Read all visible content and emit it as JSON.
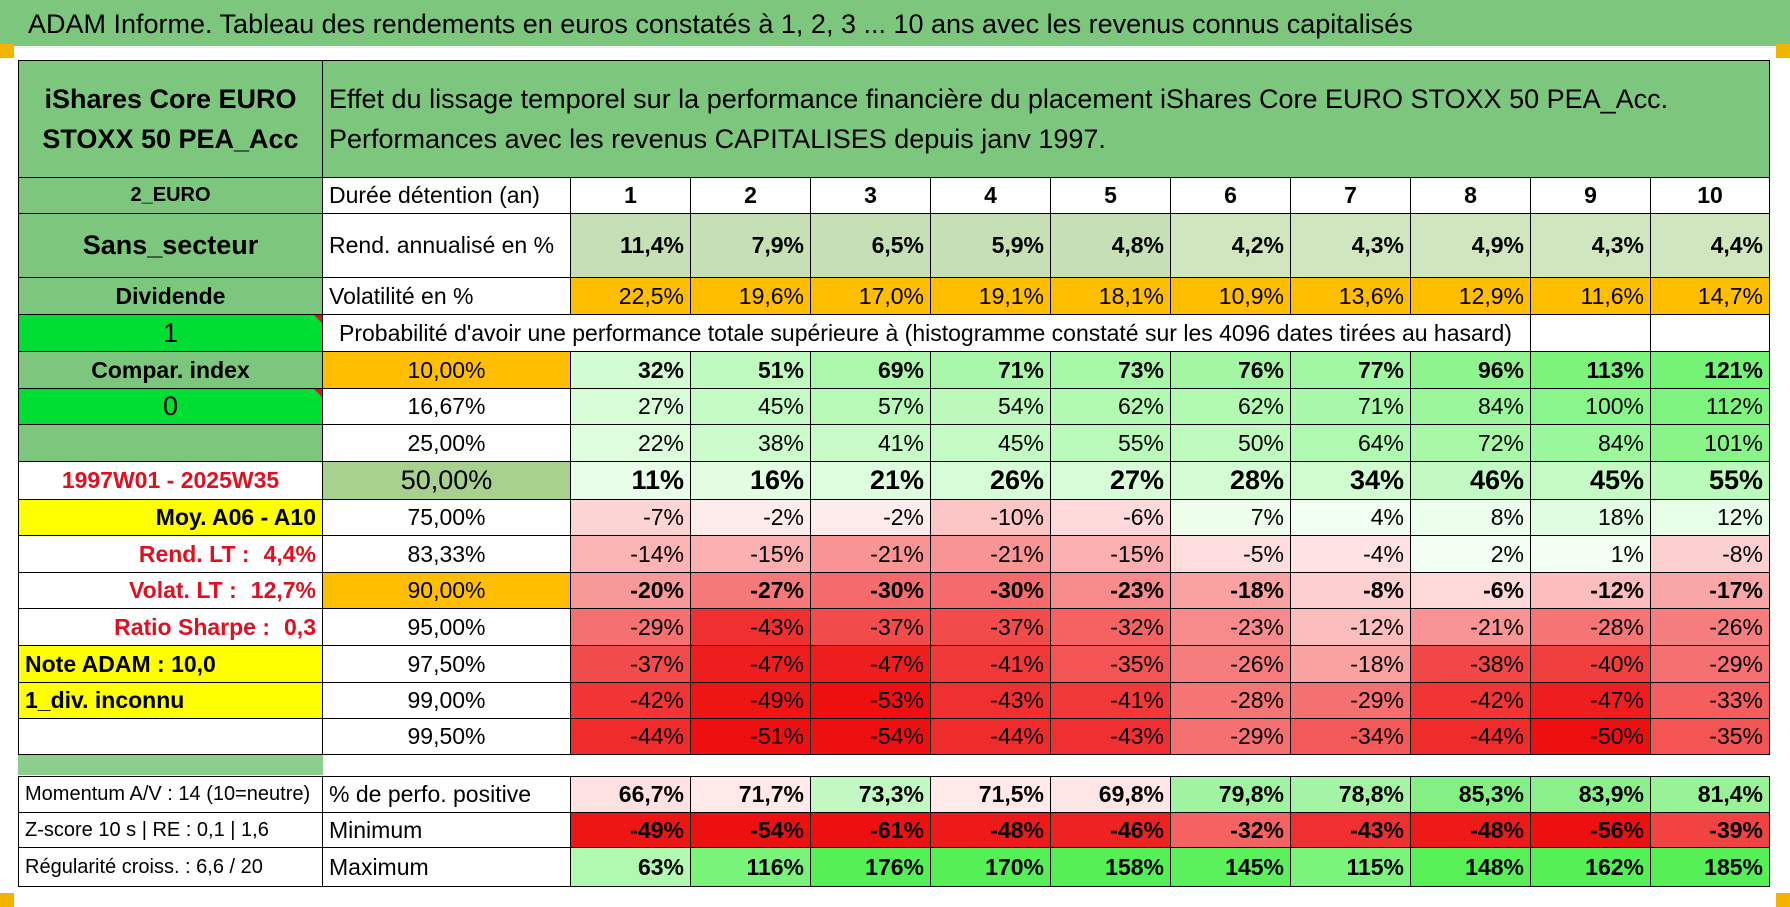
{
  "title": "ADAM Informe. Tableau des rendements en euros constatés à 1, 2, 3 ... 10 ans avec les revenus connus capitalisés",
  "fund_name": "iShares Core EURO STOXX 50 PEA_Acc",
  "description": "Effet du lissage temporel sur la performance financière du placement iShares Core EURO STOXX 50 PEA_Acc. Performances avec les revenus CAPITALISES depuis janv 1997.",
  "left_labels": {
    "currency": "2_EURO",
    "sector": "Sans_secteur",
    "dividend": "Dividende",
    "flag1": "1",
    "compar_index": "Compar. index",
    "flag0": "0",
    "period": "1997W01 - 2025W35",
    "moy": "Moy. A06 - A10",
    "rend_lt_label": "Rend. LT :",
    "rend_lt_value": "4,4%",
    "volat_lt_label": "Volat. LT :",
    "volat_lt_value": "12,7%",
    "sharpe_label": "Ratio Sharpe :",
    "sharpe_value": "0,3",
    "note": "Note ADAM : 10,0",
    "div_inconnu": "1_div. inconnu",
    "momentum": "Momentum A/V : 14 (10=neutre)",
    "zscore": "Z-score 10 s | RE : 0,1 | 1,6",
    "regularite": "Régularité croiss. : 6,6 / 20"
  },
  "row_labels": {
    "duree": "Durée détention (an)",
    "rend": "Rend. annualisé en %",
    "volat": "Volatilité en %",
    "probability": "Probabilité d'avoir une performance totale supérieure à (histogramme constaté sur les 4096 dates tirées au hasard)",
    "pos": "% de perfo. positive",
    "min": "Minimum",
    "max": "Maximum"
  },
  "years": [
    "1",
    "2",
    "3",
    "4",
    "5",
    "6",
    "7",
    "8",
    "9",
    "10"
  ],
  "rend": [
    "11,4%",
    "7,9%",
    "6,5%",
    "5,9%",
    "4,8%",
    "4,2%",
    "4,3%",
    "4,9%",
    "4,3%",
    "4,4%"
  ],
  "volat": [
    "22,5%",
    "19,6%",
    "17,0%",
    "19,1%",
    "18,1%",
    "10,9%",
    "13,6%",
    "12,9%",
    "11,6%",
    "14,7%"
  ],
  "percentile_rows": [
    {
      "level": "10,00%",
      "values": [
        "32%",
        "51%",
        "69%",
        "71%",
        "73%",
        "76%",
        "77%",
        "96%",
        "113%",
        "121%"
      ]
    },
    {
      "level": "16,67%",
      "values": [
        "27%",
        "45%",
        "57%",
        "54%",
        "62%",
        "62%",
        "71%",
        "84%",
        "100%",
        "112%"
      ]
    },
    {
      "level": "25,00%",
      "values": [
        "22%",
        "38%",
        "41%",
        "45%",
        "55%",
        "50%",
        "64%",
        "72%",
        "84%",
        "101%"
      ]
    },
    {
      "level": "50,00%",
      "values": [
        "11%",
        "16%",
        "21%",
        "26%",
        "27%",
        "28%",
        "34%",
        "46%",
        "45%",
        "55%"
      ]
    },
    {
      "level": "75,00%",
      "values": [
        "-7%",
        "-2%",
        "-2%",
        "-10%",
        "-6%",
        "7%",
        "4%",
        "8%",
        "18%",
        "12%"
      ]
    },
    {
      "level": "83,33%",
      "values": [
        "-14%",
        "-15%",
        "-21%",
        "-21%",
        "-15%",
        "-5%",
        "-4%",
        "2%",
        "1%",
        "-8%"
      ]
    },
    {
      "level": "90,00%",
      "values": [
        "-20%",
        "-27%",
        "-30%",
        "-30%",
        "-23%",
        "-18%",
        "-8%",
        "-6%",
        "-12%",
        "-17%"
      ]
    },
    {
      "level": "95,00%",
      "values": [
        "-29%",
        "-43%",
        "-37%",
        "-37%",
        "-32%",
        "-23%",
        "-12%",
        "-21%",
        "-28%",
        "-26%"
      ]
    },
    {
      "level": "97,50%",
      "values": [
        "-37%",
        "-47%",
        "-47%",
        "-41%",
        "-35%",
        "-26%",
        "-18%",
        "-38%",
        "-40%",
        "-29%"
      ]
    },
    {
      "level": "99,00%",
      "values": [
        "-42%",
        "-49%",
        "-53%",
        "-43%",
        "-41%",
        "-28%",
        "-29%",
        "-42%",
        "-47%",
        "-33%"
      ]
    },
    {
      "level": "99,50%",
      "values": [
        "-44%",
        "-51%",
        "-54%",
        "-44%",
        "-43%",
        "-29%",
        "-34%",
        "-44%",
        "-50%",
        "-35%"
      ]
    }
  ],
  "pos": [
    "66,7%",
    "71,7%",
    "73,3%",
    "71,5%",
    "69,8%",
    "79,8%",
    "78,8%",
    "85,3%",
    "83,9%",
    "81,4%"
  ],
  "min": [
    "-49%",
    "-54%",
    "-61%",
    "-48%",
    "-46%",
    "-32%",
    "-43%",
    "-48%",
    "-56%",
    "-39%"
  ],
  "max": [
    "63%",
    "116%",
    "176%",
    "170%",
    "158%",
    "145%",
    "115%",
    "148%",
    "162%",
    "185%"
  ],
  "colors": {
    "header_green": "#7dc67d",
    "bright_green": "#00dd33",
    "yellow": "#ffff00",
    "orange": "#ffbf00",
    "median_green": "#a9d18e",
    "red_text": "#e01020",
    "green_max": "#55ee55",
    "red_max": "#ee0000"
  }
}
